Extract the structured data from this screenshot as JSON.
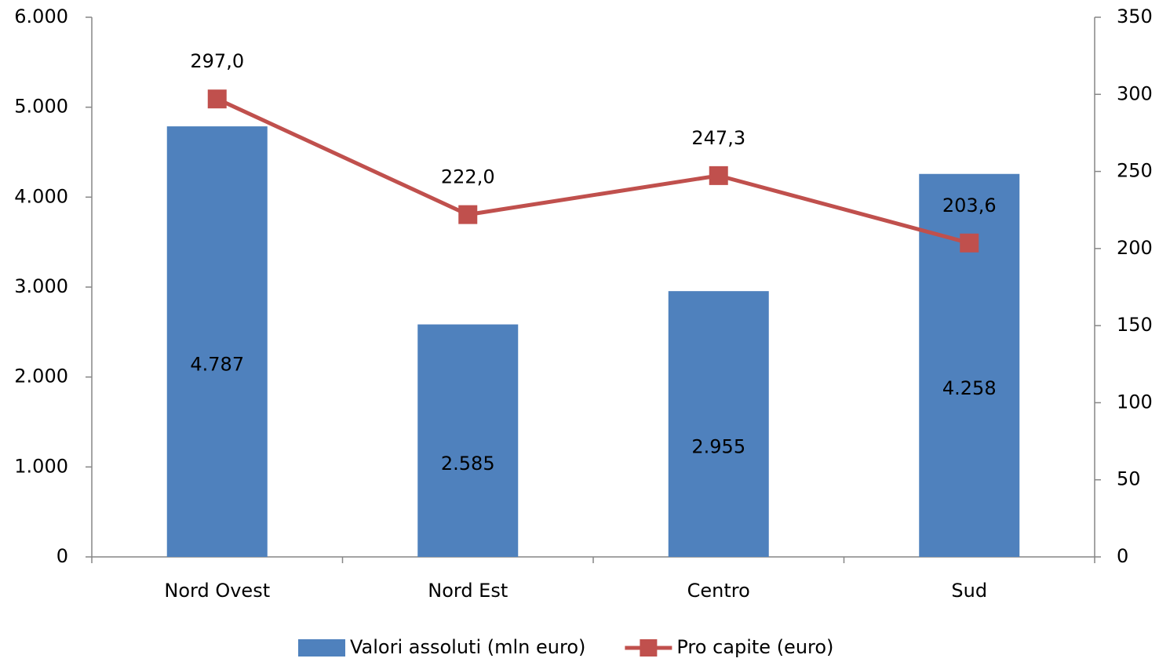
{
  "chart_data": {
    "type": "bar",
    "categories": [
      "Nord Ovest",
      "Nord Est",
      "Centro",
      "Sud"
    ],
    "series": [
      {
        "name": "Valori assoluti (mln euro)",
        "type": "bar",
        "color": "#4f81bd",
        "axis": "y",
        "values": [
          4787,
          2585,
          2955,
          4258
        ],
        "value_labels": [
          "4.787",
          "2.585",
          "2.955",
          "4.258"
        ]
      },
      {
        "name": "Pro capite (euro)",
        "type": "line",
        "color": "#c0504d",
        "axis": "y2",
        "values": [
          297.0,
          222.0,
          247.3,
          203.6
        ],
        "value_labels": [
          "297,0",
          "222,0",
          "247,3",
          "203,6"
        ]
      }
    ],
    "ylim": [
      0,
      6000
    ],
    "yticks": [
      0,
      {
        "value": 1000,
        "label": "1.000"
      },
      {
        "value": 2000,
        "label": "2.000"
      },
      {
        "value": 3000,
        "label": "3.000"
      },
      {
        "value": 4000,
        "label": "4.000"
      },
      {
        "value": 5000,
        "label": "5.000"
      },
      {
        "value": 6000,
        "label": "6.000"
      }
    ],
    "y2lim": [
      0,
      350
    ],
    "y2ticks": [
      0,
      50,
      100,
      150,
      200,
      250,
      300,
      350
    ],
    "legend": "bottom"
  }
}
